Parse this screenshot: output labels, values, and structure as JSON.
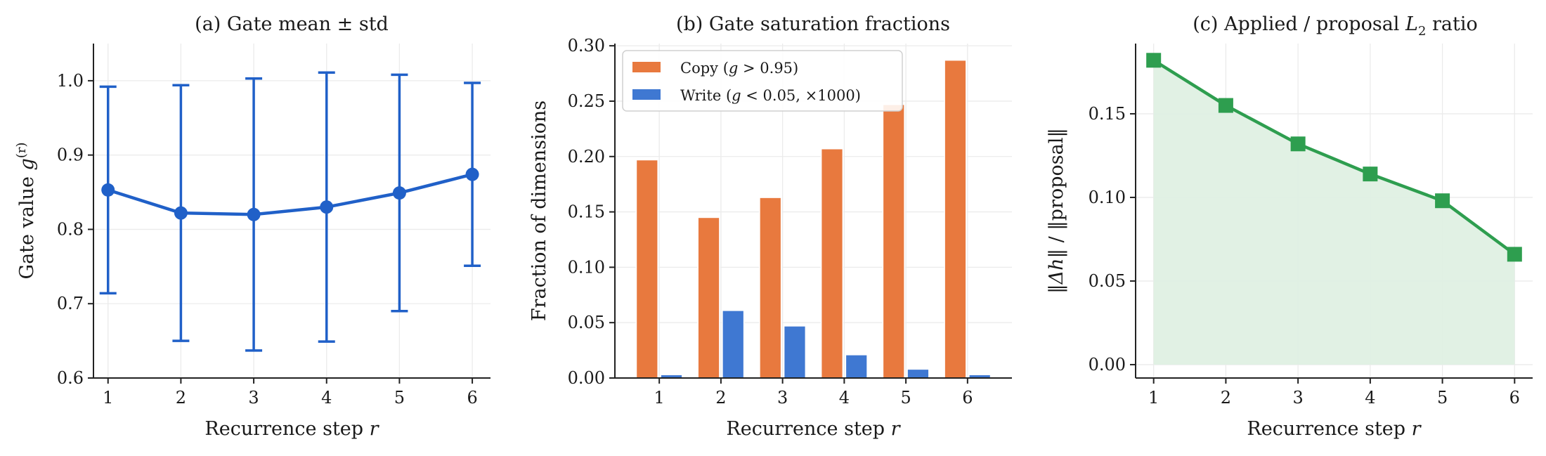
{
  "chart_data": [
    {
      "type": "line",
      "title": "(a) Gate mean ± std",
      "xlabel": "Recurrence step r",
      "ylabel": "Gate value g(r)",
      "x": [
        1,
        2,
        3,
        4,
        5,
        6
      ],
      "series": [
        {
          "values": [
            0.853,
            0.822,
            0.82,
            0.83,
            0.849,
            0.874
          ],
          "error": [
            0.139,
            0.172,
            0.183,
            0.181,
            0.159,
            0.123
          ]
        }
      ],
      "xlim": [
        0.8,
        6.25
      ],
      "ylim": [
        0.6,
        1.05
      ],
      "yticks": [
        0.6,
        0.7,
        0.8,
        0.9,
        1.0
      ],
      "xticks": [
        1,
        2,
        3,
        4,
        5,
        6
      ],
      "grid": true,
      "color": "#2060c8"
    },
    {
      "type": "bar",
      "title": "(b) Gate saturation fractions",
      "xlabel": "Recurrence step r",
      "ylabel": "Fraction of dimensions",
      "categories": [
        "1",
        "2",
        "3",
        "4",
        "5",
        "6"
      ],
      "series": [
        {
          "name": "Copy  (g > 0.95)",
          "values": [
            0.197,
            0.145,
            0.163,
            0.207,
            0.247,
            0.287
          ],
          "color": "#e8793e"
        },
        {
          "name": "Write (g < 0.05, ×1000)",
          "values": [
            0.003,
            0.061,
            0.047,
            0.021,
            0.008,
            0.003
          ],
          "color": "#3f78d2"
        }
      ],
      "ylim": [
        0,
        0.302
      ],
      "yticks": [
        0.0,
        0.05,
        0.1,
        0.15,
        0.2,
        0.25,
        0.3
      ],
      "legend": "top-left",
      "grid": true
    },
    {
      "type": "area",
      "title": "(c) Applied / proposal L2 ratio",
      "xlabel": "Recurrence step r",
      "ylabel": "‖Δh‖ / ‖proposal‖",
      "x": [
        1,
        2,
        3,
        4,
        5,
        6
      ],
      "series": [
        {
          "values": [
            0.182,
            0.155,
            0.132,
            0.114,
            0.098,
            0.066
          ]
        }
      ],
      "xlim": [
        0.75,
        6.25
      ],
      "ylim": [
        -0.008,
        0.192
      ],
      "yticks": [
        0.0,
        0.05,
        0.1,
        0.15
      ],
      "xticks": [
        1,
        2,
        3,
        4,
        5,
        6
      ],
      "grid": true,
      "color": "#2e9e4f",
      "fill_color": "#dff0e3"
    }
  ]
}
